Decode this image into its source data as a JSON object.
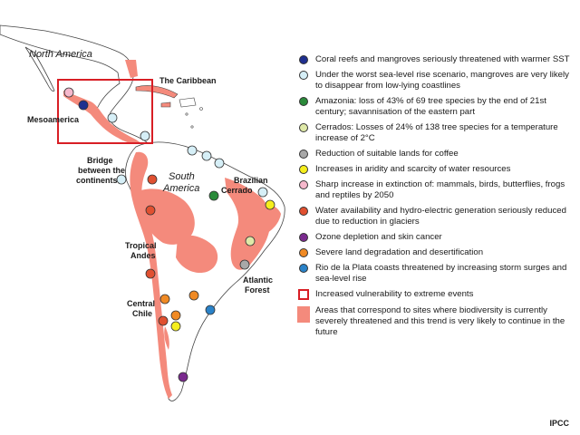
{
  "credit": "IPCC",
  "map": {
    "labels": {
      "north_america": "North America",
      "the_caribbean": "The Caribbean",
      "mesoamerica": "Mesoamerica",
      "bridge_line1": "Bridge",
      "bridge_line2": "between the",
      "bridge_line3": "continents",
      "south_america_line1": "South",
      "south_america_line2": "America",
      "brazilian_line1": "Brazilian",
      "brazilian_line2": "Cerrado",
      "tropical_line1": "Tropical",
      "tropical_line2": "Andes",
      "atlantic_line1": "Atlantic",
      "atlantic_line2": "Forest",
      "central_line1": "Central",
      "central_line2": "Chile"
    },
    "colors": {
      "land": "#ffffff",
      "outline": "#444444",
      "threatened_area": "#f48a7c",
      "vulnerability_box": "#d81e25"
    }
  },
  "legend": {
    "items": [
      {
        "color": "#1f2f8f",
        "text": "Coral reefs and mangroves seriously threatened with warmer SST"
      },
      {
        "color": "#d6eff7",
        "text": "Under the worst sea-level rise scenario, mangroves are very likely to disappear from low-lying coastlines"
      },
      {
        "color": "#2a8a3a",
        "text": "Amazonia: loss of 43% of 69 tree species by the end of 21st century; savannisation of the eastern part"
      },
      {
        "color": "#dfe9a8",
        "text": "Cerrados: Losses of 24% of 138 tree species for a temperature increase of 2°C"
      },
      {
        "color": "#a8a8a8",
        "text": "Reduction of suitable lands for coffee"
      },
      {
        "color": "#f5ee1c",
        "text": "Increases in aridity and scarcity of water resources"
      },
      {
        "color": "#f6b8cc",
        "text": "Sharp increase in extinction of: mammals, birds, butterflies, frogs and reptiles by 2050"
      },
      {
        "color": "#e05030",
        "text": "Water availability and hydro-electric generation seriously reduced due to reduction in glaciers"
      },
      {
        "color": "#7a2a8e",
        "text": "Ozone depletion and skin cancer"
      },
      {
        "color": "#f08a24",
        "text": "Severe land degradation and desertification"
      },
      {
        "color": "#2a82c8",
        "text": "Rio de la Plata coasts threatened by increasing storm surges and sea-level rise"
      }
    ],
    "vulnerability_text": "Increased vulnerability to extreme events",
    "area_text": "Areas that correspond to sites where biodiversity is currently severely threatened and this trend is very likely to continue in the future"
  }
}
